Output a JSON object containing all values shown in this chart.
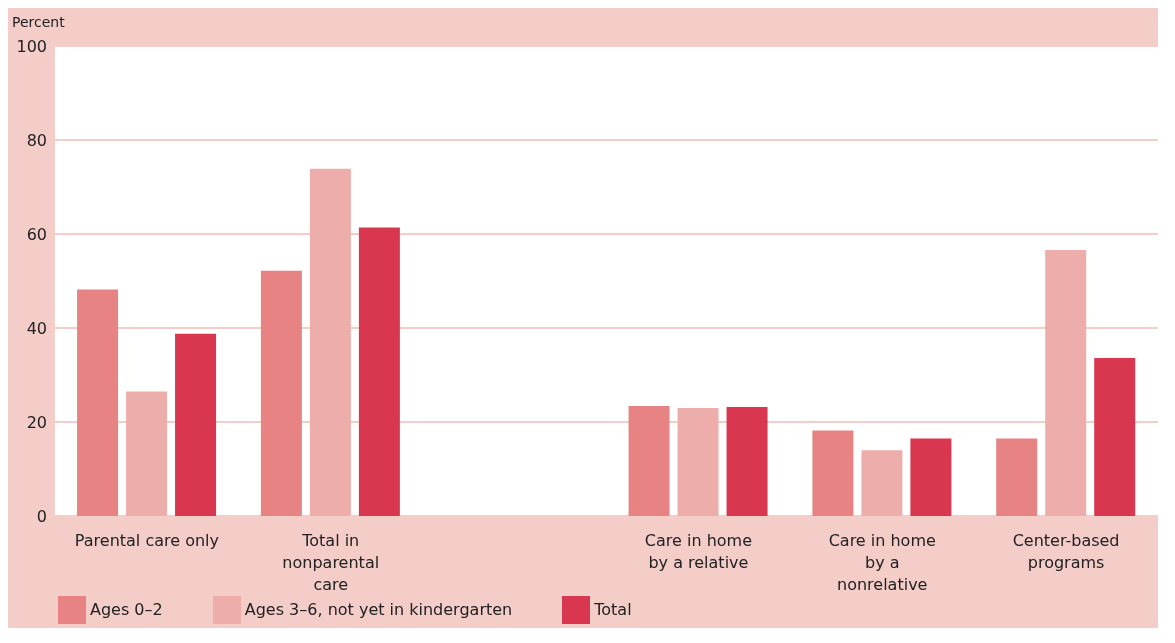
{
  "chart_data": {
    "type": "bar",
    "ylabel": "Percent",
    "categories": [
      "Parental care only",
      "Total in nonparental care",
      null,
      "Care in home by a relative",
      "Care in home by a nonrelative",
      "Center-based programs"
    ],
    "series": [
      {
        "name": "Ages 0–2",
        "color": "#e78383",
        "values": [
          48.2,
          52.2,
          null,
          23.4,
          18.2,
          16.5
        ]
      },
      {
        "name": "Ages 3–6, not yet in kindergarten",
        "color": "#edaeab",
        "values": [
          26.5,
          73.9,
          null,
          23.0,
          14.0,
          56.6
        ]
      },
      {
        "name": "Total",
        "color": "#d9374f",
        "values": [
          38.8,
          61.4,
          null,
          23.2,
          16.5,
          33.6
        ]
      }
    ],
    "ylim": [
      0,
      100
    ],
    "yticks": [
      0,
      20,
      40,
      60,
      80,
      100
    ],
    "grid": "y",
    "legend": "bottom left"
  }
}
